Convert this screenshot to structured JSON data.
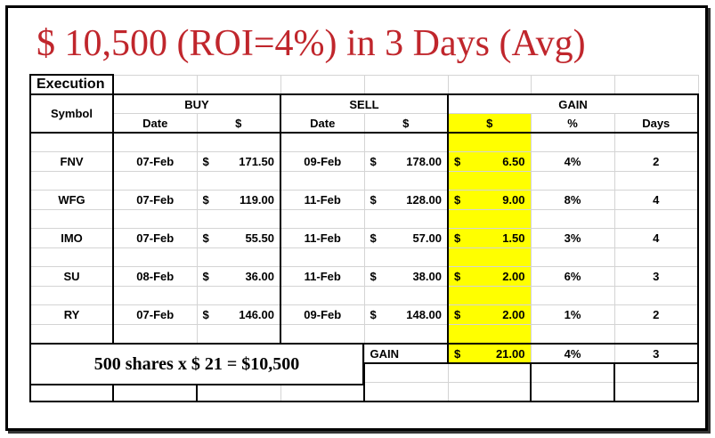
{
  "headline": "$ 10,500 (ROI=4%) in 3 Days (Avg)",
  "table": {
    "section_title": "Execution",
    "groups": {
      "symbol": "Symbol",
      "buy": "BUY",
      "sell": "SELL",
      "gain": "GAIN"
    },
    "subheaders": {
      "buy_date": "Date",
      "buy_price": "$",
      "sell_date": "Date",
      "sell_price": "$",
      "gain_dollar": "$",
      "gain_pct": "%",
      "gain_days": "Days"
    },
    "rows": [
      {
        "symbol": "FNV",
        "buy_date": "07-Feb",
        "buy_price": "171.50",
        "sell_date": "09-Feb",
        "sell_price": "178.00",
        "gain": "6.50",
        "pct": "4%",
        "days": "2"
      },
      {
        "symbol": "WFG",
        "buy_date": "07-Feb",
        "buy_price": "119.00",
        "sell_date": "11-Feb",
        "sell_price": "128.00",
        "gain": "9.00",
        "pct": "8%",
        "days": "4"
      },
      {
        "symbol": "IMO",
        "buy_date": "07-Feb",
        "buy_price": "55.50",
        "sell_date": "11-Feb",
        "sell_price": "57.00",
        "gain": "1.50",
        "pct": "3%",
        "days": "4"
      },
      {
        "symbol": "SU",
        "buy_date": "08-Feb",
        "buy_price": "36.00",
        "sell_date": "11-Feb",
        "sell_price": "38.00",
        "gain": "2.00",
        "pct": "6%",
        "days": "3"
      },
      {
        "symbol": "RY",
        "buy_date": "07-Feb",
        "buy_price": "146.00",
        "sell_date": "09-Feb",
        "sell_price": "148.00",
        "gain": "2.00",
        "pct": "1%",
        "days": "2"
      }
    ],
    "currency_symbol": "$",
    "total": {
      "label": "GAIN",
      "gain": "21.00",
      "pct": "4%",
      "days": "3"
    }
  },
  "shares_note": "500 shares x $ 21 = $10,500",
  "colors": {
    "headline": "#c0262c",
    "highlight": "#ffff00"
  }
}
